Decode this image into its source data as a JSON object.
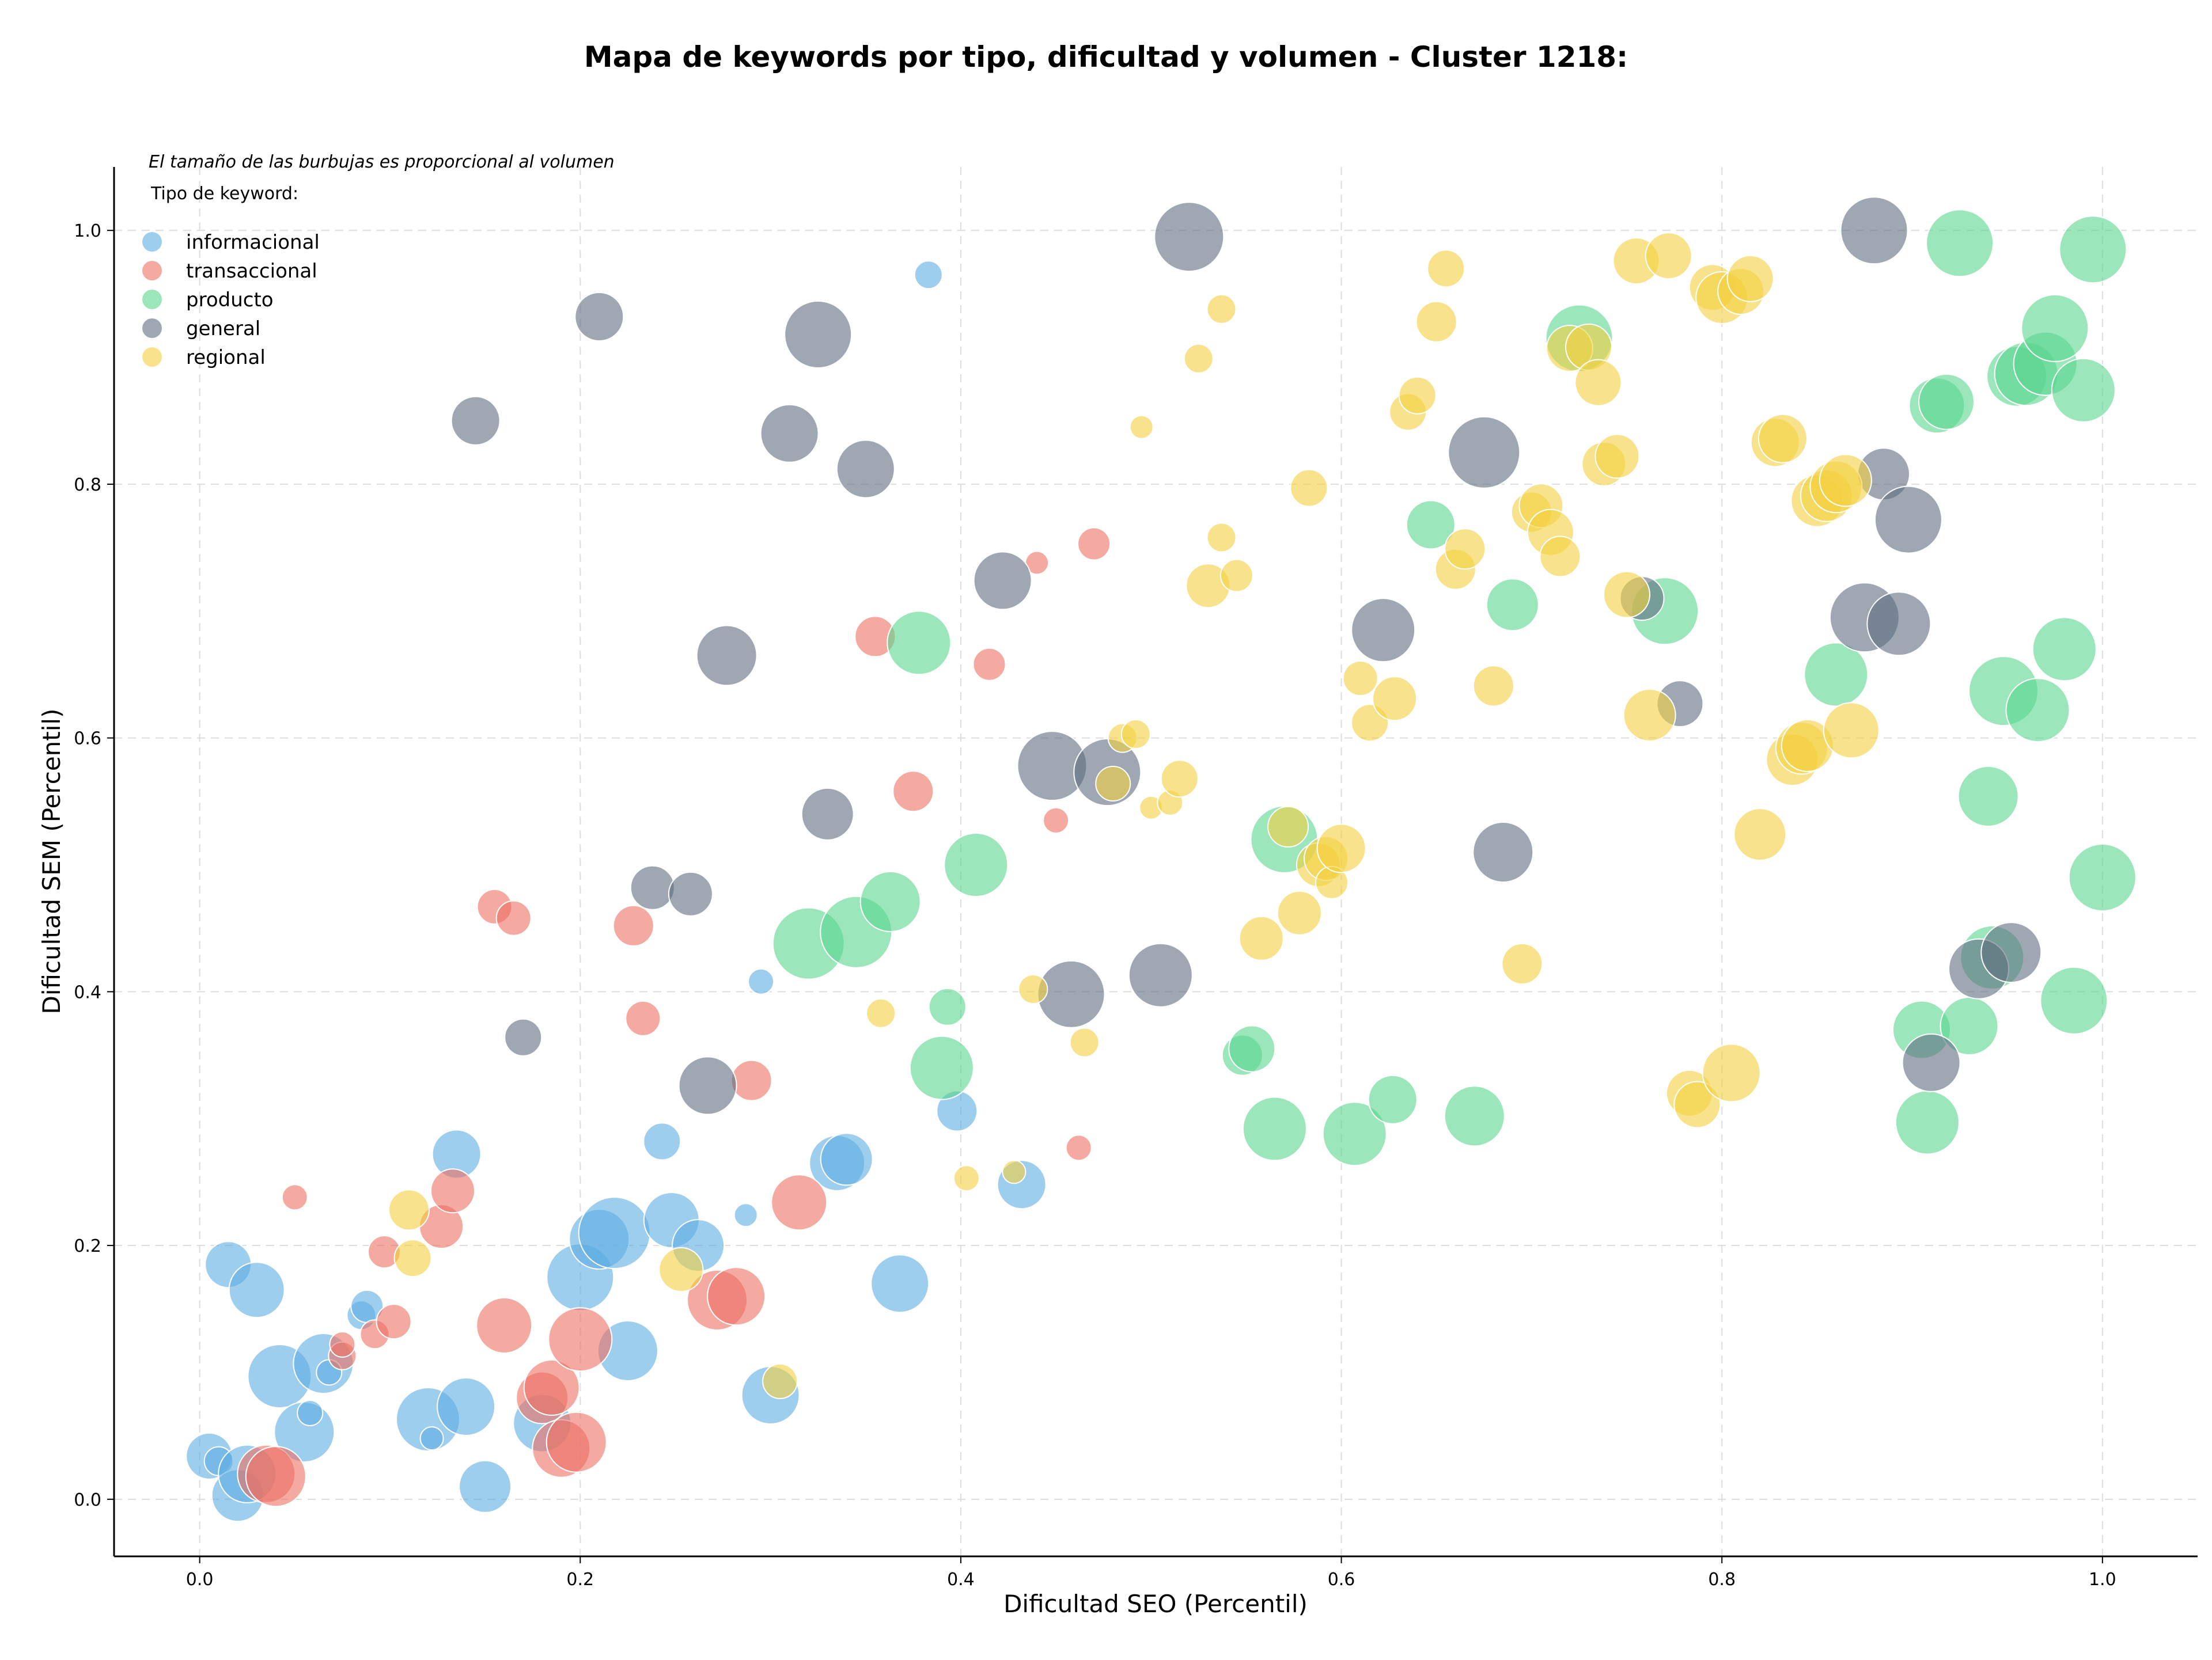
{
  "chart_data": {
    "type": "scatter",
    "title": "Mapa de keywords por tipo, dificultad y volumen - Cluster 1218:",
    "xlabel": "Dificultad SEO (Percentil)",
    "ylabel": "Dificultad SEM (Percentil)",
    "annotation": "El tamaño de las burbujas es proporcional al volumen",
    "legend_title": "Tipo de keyword:",
    "legend_position": "top-left",
    "grid": true,
    "xlim": [
      -0.045,
      1.05
    ],
    "ylim": [
      -0.045,
      1.05
    ],
    "x_ticks": [
      "0.0",
      "0.2",
      "0.4",
      "0.6",
      "0.8",
      "1.0"
    ],
    "y_ticks": [
      "0.0",
      "0.2",
      "0.4",
      "0.6",
      "0.8",
      "1.0"
    ],
    "series": [
      {
        "name": "informacional",
        "color": "#5dade2",
        "points": [
          [
            0.005,
            0.034,
            40
          ],
          [
            0.01,
            0.03,
            25
          ],
          [
            0.015,
            0.185,
            40
          ],
          [
            0.02,
            0.003,
            45
          ],
          [
            0.025,
            0.02,
            50
          ],
          [
            0.03,
            0.165,
            48
          ],
          [
            0.042,
            0.097,
            55
          ],
          [
            0.055,
            0.053,
            52
          ],
          [
            0.058,
            0.068,
            22
          ],
          [
            0.065,
            0.107,
            52
          ],
          [
            0.068,
            0.1,
            22
          ],
          [
            0.085,
            0.145,
            25
          ],
          [
            0.088,
            0.152,
            28
          ],
          [
            0.12,
            0.063,
            55
          ],
          [
            0.122,
            0.048,
            20
          ],
          [
            0.135,
            0.272,
            42
          ],
          [
            0.14,
            0.073,
            50
          ],
          [
            0.15,
            0.01,
            45
          ],
          [
            0.18,
            0.06,
            50
          ],
          [
            0.2,
            0.175,
            58
          ],
          [
            0.21,
            0.205,
            52
          ],
          [
            0.218,
            0.21,
            62
          ],
          [
            0.225,
            0.117,
            52
          ],
          [
            0.243,
            0.282,
            32
          ],
          [
            0.248,
            0.22,
            48
          ],
          [
            0.262,
            0.2,
            45
          ],
          [
            0.287,
            0.224,
            20
          ],
          [
            0.295,
            0.408,
            22
          ],
          [
            0.3,
            0.082,
            50
          ],
          [
            0.335,
            0.265,
            48
          ],
          [
            0.34,
            0.268,
            45
          ],
          [
            0.368,
            0.17,
            50
          ],
          [
            0.383,
            0.965,
            24
          ],
          [
            0.398,
            0.306,
            35
          ],
          [
            0.432,
            0.248,
            42
          ]
        ]
      },
      {
        "name": "transaccional",
        "color": "#ec7063",
        "points": [
          [
            0.035,
            0.02,
            50
          ],
          [
            0.04,
            0.018,
            52
          ],
          [
            0.05,
            0.238,
            22
          ],
          [
            0.075,
            0.113,
            24
          ],
          [
            0.075,
            0.122,
            22
          ],
          [
            0.092,
            0.13,
            25
          ],
          [
            0.097,
            0.195,
            28
          ],
          [
            0.102,
            0.14,
            30
          ],
          [
            0.127,
            0.215,
            38
          ],
          [
            0.133,
            0.243,
            38
          ],
          [
            0.155,
            0.467,
            30
          ],
          [
            0.16,
            0.137,
            48
          ],
          [
            0.165,
            0.458,
            30
          ],
          [
            0.18,
            0.08,
            45
          ],
          [
            0.185,
            0.088,
            48
          ],
          [
            0.19,
            0.04,
            50
          ],
          [
            0.198,
            0.045,
            52
          ],
          [
            0.2,
            0.126,
            55
          ],
          [
            0.228,
            0.452,
            35
          ],
          [
            0.233,
            0.379,
            30
          ],
          [
            0.272,
            0.157,
            52
          ],
          [
            0.282,
            0.16,
            50
          ],
          [
            0.29,
            0.33,
            35
          ],
          [
            0.315,
            0.234,
            48
          ],
          [
            0.355,
            0.68,
            35
          ],
          [
            0.375,
            0.558,
            35
          ],
          [
            0.415,
            0.658,
            28
          ],
          [
            0.44,
            0.738,
            20
          ],
          [
            0.45,
            0.535,
            22
          ],
          [
            0.462,
            0.277,
            22
          ],
          [
            0.47,
            0.753,
            28
          ]
        ]
      },
      {
        "name": "producto",
        "color": "#58d68d",
        "points": [
          [
            0.32,
            0.438,
            62
          ],
          [
            0.345,
            0.447,
            62
          ],
          [
            0.363,
            0.471,
            52
          ],
          [
            0.378,
            0.675,
            55
          ],
          [
            0.39,
            0.34,
            55
          ],
          [
            0.393,
            0.388,
            32
          ],
          [
            0.408,
            0.5,
            55
          ],
          [
            0.548,
            0.35,
            35
          ],
          [
            0.553,
            0.355,
            40
          ],
          [
            0.565,
            0.292,
            55
          ],
          [
            0.57,
            0.52,
            58
          ],
          [
            0.607,
            0.288,
            55
          ],
          [
            0.627,
            0.315,
            42
          ],
          [
            0.647,
            0.768,
            42
          ],
          [
            0.67,
            0.302,
            52
          ],
          [
            0.69,
            0.705,
            45
          ],
          [
            0.725,
            0.915,
            58
          ],
          [
            0.77,
            0.7,
            58
          ],
          [
            0.86,
            0.65,
            55
          ],
          [
            0.905,
            0.37,
            50
          ],
          [
            0.908,
            0.297,
            55
          ],
          [
            0.913,
            0.862,
            48
          ],
          [
            0.918,
            0.865,
            48
          ],
          [
            0.925,
            0.99,
            58
          ],
          [
            0.93,
            0.373,
            50
          ],
          [
            0.94,
            0.554,
            52
          ],
          [
            0.942,
            0.427,
            55
          ],
          [
            0.948,
            0.637,
            60
          ],
          [
            0.955,
            0.885,
            52
          ],
          [
            0.96,
            0.887,
            55
          ],
          [
            0.966,
            0.622,
            55
          ],
          [
            0.97,
            0.895,
            55
          ],
          [
            0.975,
            0.923,
            58
          ],
          [
            0.98,
            0.67,
            55
          ],
          [
            0.985,
            0.393,
            58
          ],
          [
            0.99,
            0.874,
            55
          ],
          [
            0.995,
            0.985,
            58
          ],
          [
            1.0,
            0.49,
            58
          ]
        ]
      },
      {
        "name": "general",
        "color": "#5d6d7e",
        "points": [
          [
            0.145,
            0.85,
            42
          ],
          [
            0.17,
            0.364,
            32
          ],
          [
            0.21,
            0.932,
            42
          ],
          [
            0.238,
            0.482,
            38
          ],
          [
            0.258,
            0.477,
            38
          ],
          [
            0.267,
            0.326,
            50
          ],
          [
            0.277,
            0.665,
            52
          ],
          [
            0.31,
            0.84,
            50
          ],
          [
            0.325,
            0.918,
            58
          ],
          [
            0.33,
            0.54,
            45
          ],
          [
            0.35,
            0.812,
            50
          ],
          [
            0.422,
            0.724,
            50
          ],
          [
            0.448,
            0.578,
            60
          ],
          [
            0.458,
            0.398,
            58
          ],
          [
            0.477,
            0.573,
            58
          ],
          [
            0.505,
            0.413,
            55
          ],
          [
            0.52,
            0.995,
            60
          ],
          [
            0.622,
            0.685,
            55
          ],
          [
            0.675,
            0.825,
            62
          ],
          [
            0.685,
            0.51,
            52
          ],
          [
            0.758,
            0.71,
            38
          ],
          [
            0.778,
            0.627,
            40
          ],
          [
            0.88,
            1.0,
            58
          ],
          [
            0.875,
            0.695,
            60
          ],
          [
            0.885,
            0.808,
            45
          ],
          [
            0.893,
            0.69,
            55
          ],
          [
            0.898,
            0.772,
            58
          ],
          [
            0.91,
            0.344,
            50
          ],
          [
            0.935,
            0.418,
            52
          ],
          [
            0.952,
            0.431,
            52
          ]
        ]
      },
      {
        "name": "regional",
        "color": "#f4d03f",
        "points": [
          [
            0.11,
            0.228,
            35
          ],
          [
            0.112,
            0.19,
            32
          ],
          [
            0.253,
            0.181,
            38
          ],
          [
            0.305,
            0.093,
            30
          ],
          [
            0.358,
            0.383,
            25
          ],
          [
            0.403,
            0.253,
            22
          ],
          [
            0.428,
            0.258,
            20
          ],
          [
            0.438,
            0.402,
            25
          ],
          [
            0.465,
            0.36,
            25
          ],
          [
            0.48,
            0.564,
            30
          ],
          [
            0.485,
            0.6,
            25
          ],
          [
            0.492,
            0.603,
            25
          ],
          [
            0.495,
            0.845,
            20
          ],
          [
            0.5,
            0.545,
            20
          ],
          [
            0.51,
            0.549,
            22
          ],
          [
            0.515,
            0.568,
            32
          ],
          [
            0.525,
            0.899,
            25
          ],
          [
            0.53,
            0.72,
            38
          ],
          [
            0.537,
            0.938,
            25
          ],
          [
            0.537,
            0.758,
            25
          ],
          [
            0.545,
            0.728,
            28
          ],
          [
            0.558,
            0.442,
            38
          ],
          [
            0.572,
            0.53,
            35
          ],
          [
            0.578,
            0.462,
            38
          ],
          [
            0.583,
            0.797,
            32
          ],
          [
            0.588,
            0.5,
            38
          ],
          [
            0.592,
            0.505,
            38
          ],
          [
            0.595,
            0.486,
            28
          ],
          [
            0.6,
            0.513,
            42
          ],
          [
            0.61,
            0.647,
            30
          ],
          [
            0.615,
            0.612,
            32
          ],
          [
            0.628,
            0.631,
            38
          ],
          [
            0.635,
            0.857,
            32
          ],
          [
            0.64,
            0.87,
            32
          ],
          [
            0.65,
            0.928,
            35
          ],
          [
            0.655,
            0.97,
            32
          ],
          [
            0.66,
            0.733,
            35
          ],
          [
            0.665,
            0.749,
            35
          ],
          [
            0.68,
            0.641,
            35
          ],
          [
            0.695,
            0.422,
            35
          ],
          [
            0.7,
            0.778,
            35
          ],
          [
            0.705,
            0.783,
            38
          ],
          [
            0.71,
            0.762,
            40
          ],
          [
            0.715,
            0.743,
            35
          ],
          [
            0.72,
            0.907,
            40
          ],
          [
            0.73,
            0.908,
            40
          ],
          [
            0.735,
            0.88,
            40
          ],
          [
            0.738,
            0.816,
            38
          ],
          [
            0.745,
            0.822,
            38
          ],
          [
            0.75,
            0.713,
            40
          ],
          [
            0.755,
            0.976,
            40
          ],
          [
            0.762,
            0.618,
            45
          ],
          [
            0.772,
            0.98,
            40
          ],
          [
            0.783,
            0.32,
            40
          ],
          [
            0.787,
            0.311,
            40
          ],
          [
            0.795,
            0.955,
            40
          ],
          [
            0.8,
            0.947,
            45
          ],
          [
            0.805,
            0.336,
            50
          ],
          [
            0.81,
            0.952,
            40
          ],
          [
            0.815,
            0.962,
            40
          ],
          [
            0.82,
            0.524,
            45
          ],
          [
            0.828,
            0.833,
            42
          ],
          [
            0.832,
            0.836,
            42
          ],
          [
            0.837,
            0.583,
            45
          ],
          [
            0.842,
            0.592,
            45
          ],
          [
            0.845,
            0.594,
            45
          ],
          [
            0.85,
            0.787,
            45
          ],
          [
            0.855,
            0.791,
            45
          ],
          [
            0.86,
            0.798,
            45
          ],
          [
            0.865,
            0.803,
            45
          ],
          [
            0.868,
            0.606,
            48
          ]
        ]
      }
    ]
  }
}
